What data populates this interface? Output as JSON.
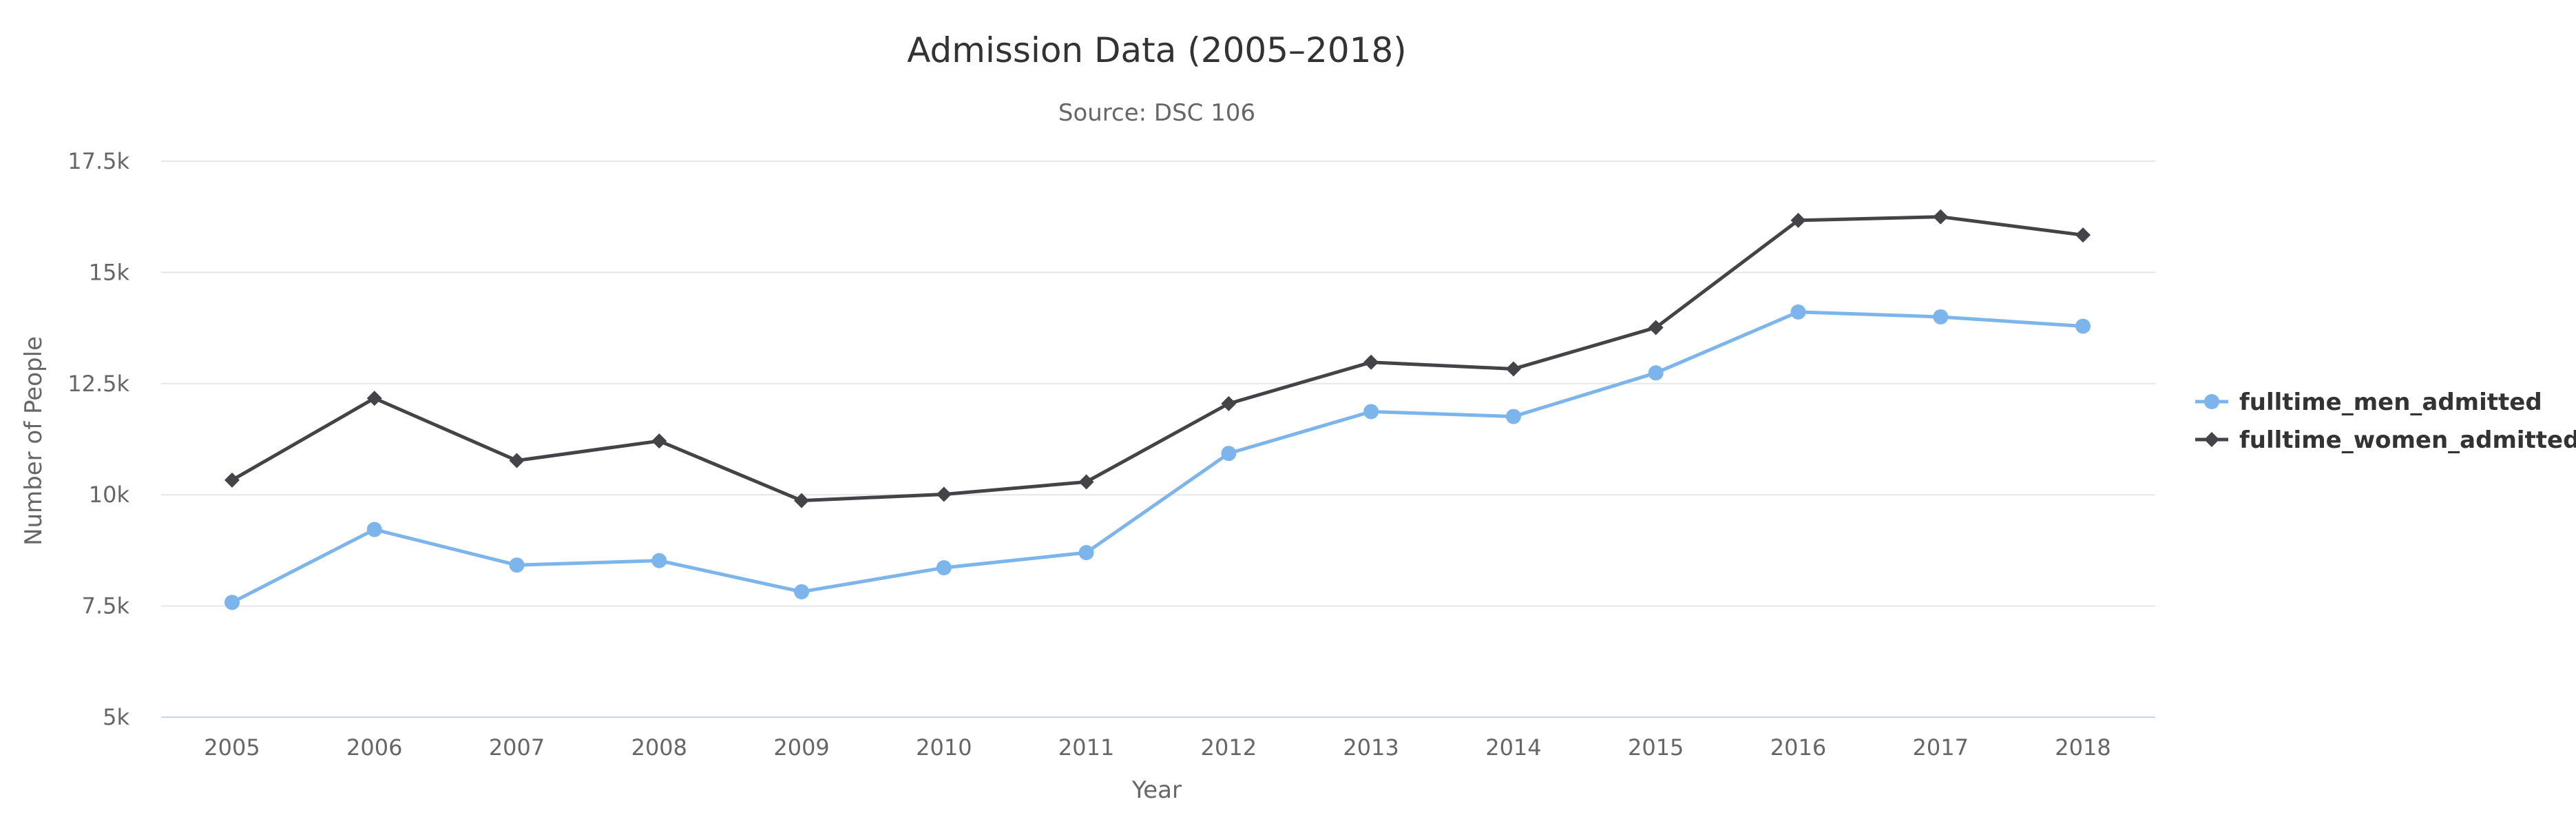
{
  "chart_data": {
    "type": "line",
    "title": "Admission Data (2005–2018)",
    "subtitle": "Source: DSC 106",
    "xlabel": "Year",
    "ylabel": "Number of People",
    "categories": [
      "2005",
      "2006",
      "2007",
      "2008",
      "2009",
      "2010",
      "2011",
      "2012",
      "2013",
      "2014",
      "2015",
      "2016",
      "2017",
      "2018"
    ],
    "ylim": [
      5000,
      17500
    ],
    "yticks": [
      5000,
      7500,
      10000,
      12500,
      15000,
      17500
    ],
    "ytick_labels": [
      "5k",
      "7.5k",
      "10k",
      "12.5k",
      "15k",
      "17.5k"
    ],
    "grid": true,
    "legend_position": "right",
    "series": [
      {
        "name": "fulltime_men_admitted",
        "color": "#7cb5ec",
        "marker": "circle",
        "values": [
          7580,
          9220,
          8420,
          8520,
          7820,
          8360,
          8700,
          10930,
          11870,
          11760,
          12740,
          14110,
          14000,
          13790
        ]
      },
      {
        "name": "fulltime_women_admitted",
        "color": "#434348",
        "marker": "diamond",
        "values": [
          10330,
          12170,
          10770,
          11210,
          9870,
          10010,
          10290,
          12050,
          12980,
          12830,
          13760,
          16170,
          16250,
          15840
        ]
      }
    ]
  }
}
